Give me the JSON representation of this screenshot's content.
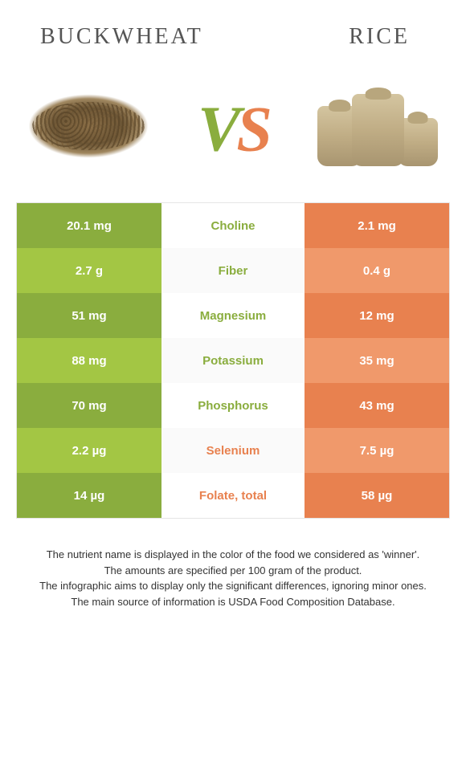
{
  "header": {
    "left_title": "BUCKWHEAT",
    "right_title": "RICE"
  },
  "vs": {
    "v": "V",
    "s": "S"
  },
  "colors": {
    "left_odd": "#8aad3e",
    "left_even": "#a3c644",
    "right_odd": "#e8814f",
    "right_even": "#f0996b",
    "text_white": "#ffffff",
    "winner_left": "#8aad3e",
    "winner_right": "#e8814f"
  },
  "table": {
    "rows": [
      {
        "left": "20.1 mg",
        "label": "Choline",
        "right": "2.1 mg",
        "winner": "left"
      },
      {
        "left": "2.7 g",
        "label": "Fiber",
        "right": "0.4 g",
        "winner": "left"
      },
      {
        "left": "51 mg",
        "label": "Magnesium",
        "right": "12 mg",
        "winner": "left"
      },
      {
        "left": "88 mg",
        "label": "Potassium",
        "right": "35 mg",
        "winner": "left"
      },
      {
        "left": "70 mg",
        "label": "Phosphorus",
        "right": "43 mg",
        "winner": "left"
      },
      {
        "left": "2.2 µg",
        "label": "Selenium",
        "right": "7.5 µg",
        "winner": "right"
      },
      {
        "left": "14 µg",
        "label": "Folate, total",
        "right": "58 µg",
        "winner": "right"
      }
    ]
  },
  "footer": {
    "line1": "The nutrient name is displayed in the color of the food we considered as 'winner'.",
    "line2": "The amounts are specified per 100 gram of the product.",
    "line3": "The infographic aims to display only the significant differences, ignoring minor ones.",
    "line4": "The main source of information is USDA Food Composition Database."
  }
}
